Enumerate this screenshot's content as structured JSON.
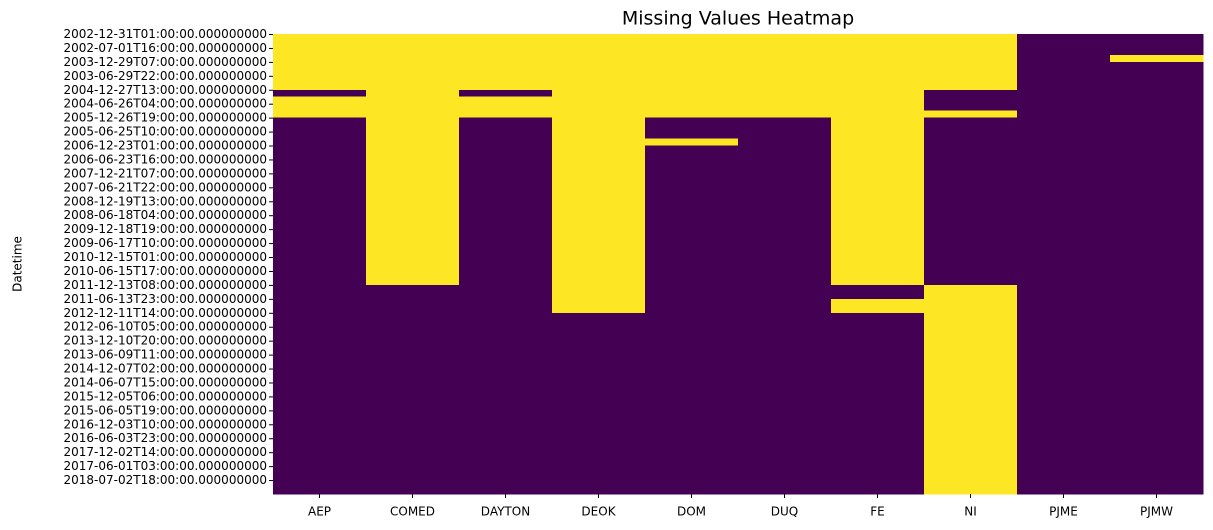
{
  "chart_data": {
    "type": "heatmap",
    "title": "Missing Values Heatmap",
    "y_label": "Datetime",
    "categories": [
      "AEP",
      "COMED",
      "DAYTON",
      "DEOK",
      "DOM",
      "DUQ",
      "FE",
      "NI",
      "PJME",
      "PJMW"
    ],
    "rows": [
      "2002-12-31T01:00:00.000000000",
      null,
      "2002-07-01T16:00:00.000000000",
      null,
      "2003-12-29T07:00:00.000000000",
      null,
      "2003-06-29T22:00:00.000000000",
      null,
      "2004-12-27T13:00:00.000000000",
      null,
      "2004-06-26T04:00:00.000000000",
      null,
      "2005-12-26T19:00:00.000000000",
      null,
      "2005-06-25T10:00:00.000000000",
      null,
      "2006-12-23T01:00:00.000000000",
      null,
      "2006-06-23T16:00:00.000000000",
      null,
      "2007-12-21T07:00:00.000000000",
      null,
      "2007-06-21T22:00:00.000000000",
      null,
      "2008-12-19T13:00:00.000000000",
      null,
      "2008-06-18T04:00:00.000000000",
      null,
      "2009-12-18T19:00:00.000000000",
      null,
      "2009-06-17T10:00:00.000000000",
      null,
      "2010-12-15T01:00:00.000000000",
      null,
      "2010-06-15T17:00:00.000000000",
      null,
      "2011-12-13T08:00:00.000000000",
      null,
      "2011-06-13T23:00:00.000000000",
      null,
      "2012-12-11T14:00:00.000000000",
      null,
      "2012-06-10T05:00:00.000000000",
      null,
      "2013-12-10T20:00:00.000000000",
      null,
      "2013-06-09T11:00:00.000000000",
      null,
      "2014-12-07T02:00:00.000000000",
      null,
      "2014-06-07T15:00:00.000000000",
      null,
      "2015-12-05T06:00:00.000000000",
      null,
      "2015-06-05T19:00:00.000000000",
      null,
      "2016-12-03T10:00:00.000000000",
      null,
      "2016-06-03T23:00:00.000000000",
      null,
      "2017-12-02T14:00:00.000000000",
      null,
      "2017-06-01T03:00:00.000000000",
      null,
      "2018-07-02T18:00:00.000000000",
      null
    ],
    "colors": [
      "#440154",
      "#fde725"
    ],
    "values": [
      [
        1,
        1,
        1,
        1,
        1,
        1,
        1,
        1,
        0,
        0
      ],
      [
        1,
        1,
        1,
        1,
        1,
        1,
        1,
        1,
        0,
        0
      ],
      [
        1,
        1,
        1,
        1,
        1,
        1,
        1,
        1,
        0,
        0
      ],
      [
        1,
        1,
        1,
        1,
        1,
        1,
        1,
        1,
        0,
        1
      ],
      [
        1,
        1,
        1,
        1,
        1,
        1,
        1,
        1,
        0,
        0
      ],
      [
        1,
        1,
        1,
        1,
        1,
        1,
        1,
        1,
        0,
        0
      ],
      [
        1,
        1,
        1,
        1,
        1,
        1,
        1,
        1,
        0,
        0
      ],
      [
        1,
        1,
        1,
        1,
        1,
        1,
        1,
        1,
        0,
        0
      ],
      [
        0,
        1,
        0,
        1,
        1,
        1,
        1,
        0,
        0,
        0
      ],
      [
        1,
        1,
        1,
        1,
        1,
        1,
        1,
        0,
        0,
        0
      ],
      [
        1,
        1,
        1,
        1,
        1,
        1,
        1,
        0,
        0,
        0
      ],
      [
        1,
        1,
        1,
        1,
        1,
        1,
        1,
        1,
        0,
        0
      ],
      [
        0,
        1,
        0,
        1,
        0,
        0,
        1,
        0,
        0,
        0
      ],
      [
        0,
        1,
        0,
        1,
        0,
        0,
        1,
        0,
        0,
        0
      ],
      [
        0,
        1,
        0,
        1,
        0,
        0,
        1,
        0,
        0,
        0
      ],
      [
        0,
        1,
        0,
        1,
        1,
        0,
        1,
        0,
        0,
        0
      ],
      [
        0,
        1,
        0,
        1,
        0,
        0,
        1,
        0,
        0,
        0
      ],
      [
        0,
        1,
        0,
        1,
        0,
        0,
        1,
        0,
        0,
        0
      ],
      [
        0,
        1,
        0,
        1,
        0,
        0,
        1,
        0,
        0,
        0
      ],
      [
        0,
        1,
        0,
        1,
        0,
        0,
        1,
        0,
        0,
        0
      ],
      [
        0,
        1,
        0,
        1,
        0,
        0,
        1,
        0,
        0,
        0
      ],
      [
        0,
        1,
        0,
        1,
        0,
        0,
        1,
        0,
        0,
        0
      ],
      [
        0,
        1,
        0,
        1,
        0,
        0,
        1,
        0,
        0,
        0
      ],
      [
        0,
        1,
        0,
        1,
        0,
        0,
        1,
        0,
        0,
        0
      ],
      [
        0,
        1,
        0,
        1,
        0,
        0,
        1,
        0,
        0,
        0
      ],
      [
        0,
        1,
        0,
        1,
        0,
        0,
        1,
        0,
        0,
        0
      ],
      [
        0,
        1,
        0,
        1,
        0,
        0,
        1,
        0,
        0,
        0
      ],
      [
        0,
        1,
        0,
        1,
        0,
        0,
        1,
        0,
        0,
        0
      ],
      [
        0,
        1,
        0,
        1,
        0,
        0,
        1,
        0,
        0,
        0
      ],
      [
        0,
        1,
        0,
        1,
        0,
        0,
        1,
        0,
        0,
        0
      ],
      [
        0,
        1,
        0,
        1,
        0,
        0,
        1,
        0,
        0,
        0
      ],
      [
        0,
        1,
        0,
        1,
        0,
        0,
        1,
        0,
        0,
        0
      ],
      [
        0,
        1,
        0,
        1,
        0,
        0,
        1,
        0,
        0,
        0
      ],
      [
        0,
        1,
        0,
        1,
        0,
        0,
        1,
        0,
        0,
        0
      ],
      [
        0,
        1,
        0,
        1,
        0,
        0,
        1,
        0,
        0,
        0
      ],
      [
        0,
        1,
        0,
        1,
        0,
        0,
        1,
        0,
        0,
        0
      ],
      [
        0,
        0,
        0,
        1,
        0,
        0,
        0,
        1,
        0,
        0
      ],
      [
        0,
        0,
        0,
        1,
        0,
        0,
        0,
        1,
        0,
        0
      ],
      [
        0,
        0,
        0,
        1,
        0,
        0,
        1,
        1,
        0,
        0
      ],
      [
        0,
        0,
        0,
        1,
        0,
        0,
        1,
        1,
        0,
        0
      ],
      [
        0,
        0,
        0,
        0,
        0,
        0,
        0,
        1,
        0,
        0
      ],
      [
        0,
        0,
        0,
        0,
        0,
        0,
        0,
        1,
        0,
        0
      ],
      [
        0,
        0,
        0,
        0,
        0,
        0,
        0,
        1,
        0,
        0
      ],
      [
        0,
        0,
        0,
        0,
        0,
        0,
        0,
        1,
        0,
        0
      ],
      [
        0,
        0,
        0,
        0,
        0,
        0,
        0,
        1,
        0,
        0
      ],
      [
        0,
        0,
        0,
        0,
        0,
        0,
        0,
        1,
        0,
        0
      ],
      [
        0,
        0,
        0,
        0,
        0,
        0,
        0,
        1,
        0,
        0
      ],
      [
        0,
        0,
        0,
        0,
        0,
        0,
        0,
        1,
        0,
        0
      ],
      [
        0,
        0,
        0,
        0,
        0,
        0,
        0,
        1,
        0,
        0
      ],
      [
        0,
        0,
        0,
        0,
        0,
        0,
        0,
        1,
        0,
        0
      ],
      [
        0,
        0,
        0,
        0,
        0,
        0,
        0,
        1,
        0,
        0
      ],
      [
        0,
        0,
        0,
        0,
        0,
        0,
        0,
        1,
        0,
        0
      ],
      [
        0,
        0,
        0,
        0,
        0,
        0,
        0,
        1,
        0,
        0
      ],
      [
        0,
        0,
        0,
        0,
        0,
        0,
        0,
        1,
        0,
        0
      ],
      [
        0,
        0,
        0,
        0,
        0,
        0,
        0,
        1,
        0,
        0
      ],
      [
        0,
        0,
        0,
        0,
        0,
        0,
        0,
        1,
        0,
        0
      ],
      [
        0,
        0,
        0,
        0,
        0,
        0,
        0,
        1,
        0,
        0
      ],
      [
        0,
        0,
        0,
        0,
        0,
        0,
        0,
        1,
        0,
        0
      ],
      [
        0,
        0,
        0,
        0,
        0,
        0,
        0,
        1,
        0,
        0
      ],
      [
        0,
        0,
        0,
        0,
        0,
        0,
        0,
        1,
        0,
        0
      ],
      [
        0,
        0,
        0,
        0,
        0,
        0,
        0,
        1,
        0,
        0
      ],
      [
        0,
        0,
        0,
        0,
        0,
        0,
        0,
        1,
        0,
        0
      ],
      [
        0,
        0,
        0,
        0,
        0,
        0,
        0,
        1,
        0,
        0
      ],
      [
        0,
        0,
        0,
        0,
        0,
        0,
        0,
        1,
        0,
        0
      ],
      [
        0,
        0,
        0,
        0,
        0,
        0,
        0,
        1,
        0,
        0
      ],
      [
        0,
        0,
        0,
        0,
        0,
        0,
        0,
        1,
        0,
        0
      ]
    ]
  }
}
